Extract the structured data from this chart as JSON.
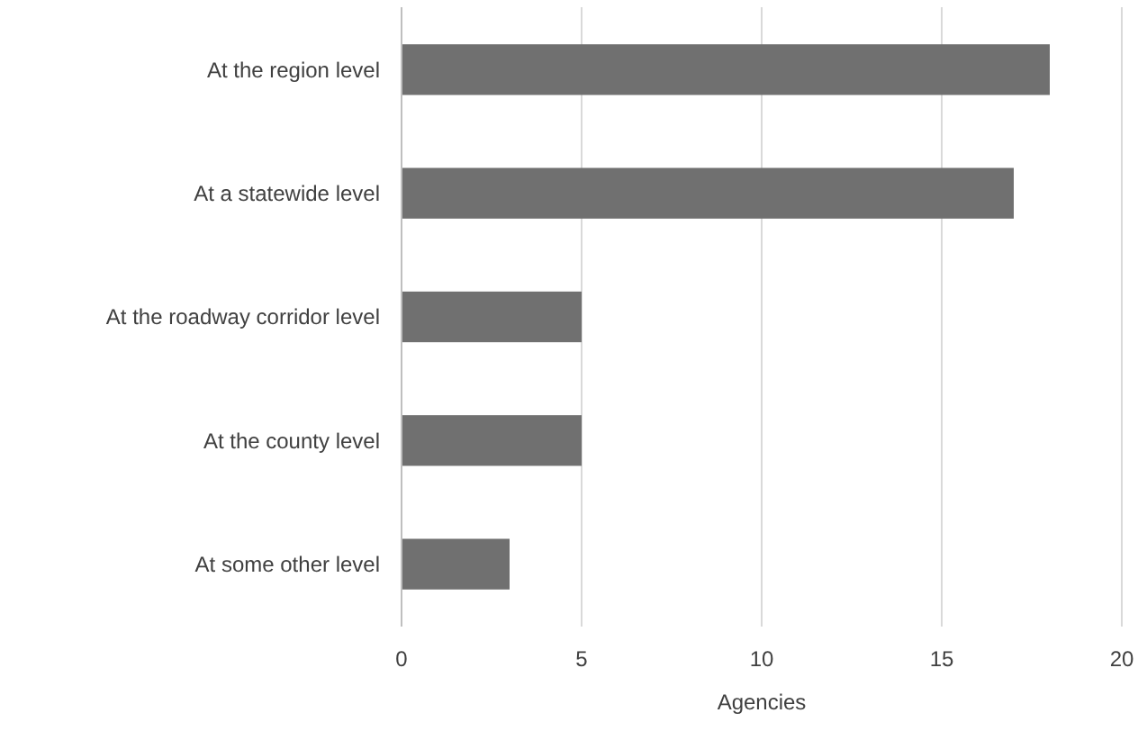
{
  "chart_data": {
    "type": "bar",
    "orientation": "horizontal",
    "xlabel": "Agencies",
    "categories": [
      "At the region level",
      "At a statewide level",
      "At the roadway corridor level",
      "At the county level",
      "At some other level"
    ],
    "values": [
      18,
      17,
      5,
      5,
      3
    ],
    "color": "#707070",
    "xlim": [
      0,
      20
    ],
    "xticks": [
      0,
      5,
      10,
      15,
      20
    ],
    "grid": "x"
  }
}
